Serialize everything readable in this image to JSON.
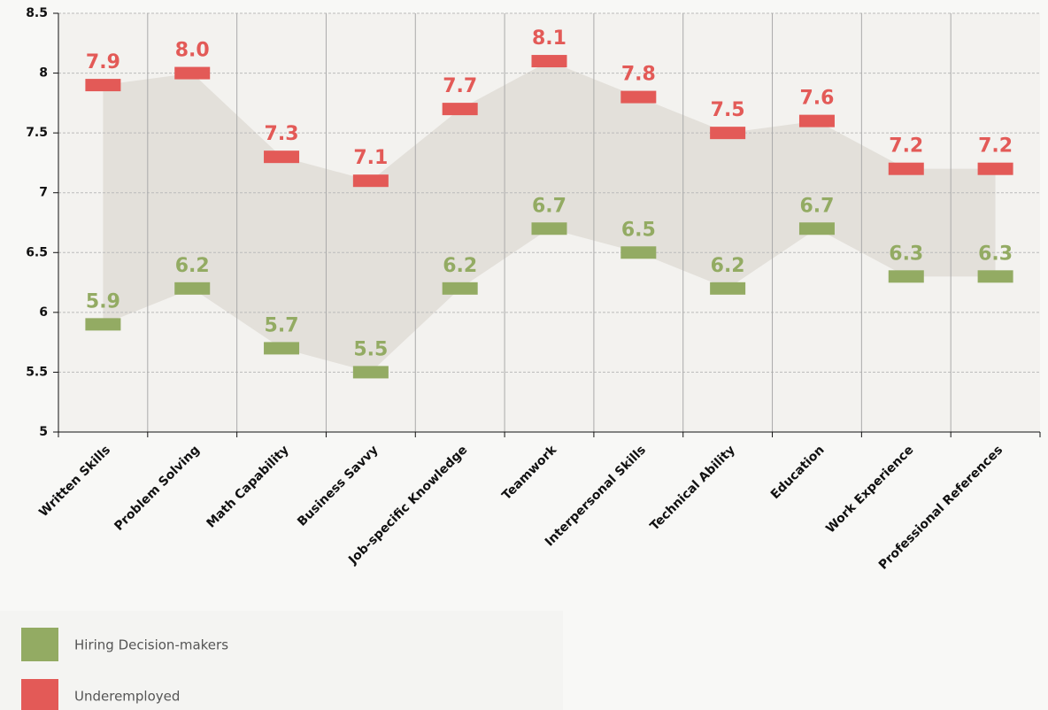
{
  "chart_data": {
    "type": "range-dash",
    "categories": [
      "Written Skills",
      "Problem Solving",
      "Math Capability",
      "Business Savvy",
      "Job-specific Knowledge",
      "Teamwork",
      "Interpersonal Skills",
      "Technical Ability",
      "Education",
      "Work Experience",
      "Professional References"
    ],
    "series": [
      {
        "name": "Hiring Decision-makers",
        "color": "#93ab63",
        "values": [
          5.9,
          6.2,
          5.7,
          5.5,
          6.2,
          6.7,
          6.5,
          6.2,
          6.7,
          6.3,
          6.3
        ],
        "value_labels": [
          "5.9",
          "6.2",
          "5.7",
          "5.5",
          "6.2",
          "6.7",
          "6.5",
          "6.2",
          "6.7",
          "6.3",
          "6.3"
        ]
      },
      {
        "name": "Underemployed",
        "color": "#e35a57",
        "values": [
          7.9,
          8,
          7.3,
          7.1,
          7.7,
          8.1,
          7.8,
          7.5,
          7.6,
          7.2,
          7.2
        ],
        "value_labels": [
          "7.9",
          "8.0",
          "7.3",
          "7.1",
          "7.7",
          "8.1",
          "7.8",
          "7.5",
          "7.6",
          "7.2",
          "7.2"
        ]
      }
    ],
    "ylim": [
      5,
      8.5
    ],
    "yticks": [
      5,
      5.5,
      6,
      6.5,
      7,
      7.5,
      8,
      8.5
    ],
    "grid": true,
    "band_color": "#e3e0da"
  }
}
